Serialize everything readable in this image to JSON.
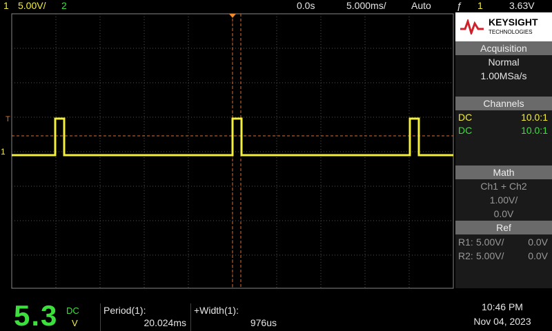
{
  "top_bar": {
    "ch1_num": "1",
    "ch1_scale": "5.00V/",
    "ch2_num": "2",
    "delay": "0.0s",
    "timebase": "5.000ms/",
    "trigger_mode": "Auto",
    "trigger_source": "1",
    "trigger_level": "3.63V"
  },
  "brand": {
    "name": "KEYSIGHT",
    "sub": "TECHNOLOGIES"
  },
  "acquisition": {
    "header": "Acquisition",
    "mode": "Normal",
    "rate": "1.00MSa/s"
  },
  "channels": {
    "header": "Channels",
    "rows": [
      [
        "DC",
        "10.0:1"
      ],
      [
        "DC",
        "10.0:1"
      ]
    ]
  },
  "math": {
    "header": "Math",
    "expr": "Ch1 + Ch2",
    "scale": "1.00V/",
    "offset": "0.0V"
  },
  "ref": {
    "header": "Ref",
    "rows": [
      [
        "R1:",
        "5.00V/",
        "0.0V"
      ],
      [
        "R2:",
        "5.00V/",
        "0.0V"
      ]
    ]
  },
  "meter": {
    "reading": "5.3",
    "coupling": "DC",
    "unit": "V"
  },
  "measurements": [
    {
      "label": "Period(1):",
      "value": "20.024ms"
    },
    {
      "label": "+Width(1):",
      "value": "976us"
    }
  ],
  "clock": {
    "time": "10:46 PM",
    "date": "Nov 04, 2023"
  },
  "markers": {
    "trigger": "T",
    "ch1": "1"
  }
}
